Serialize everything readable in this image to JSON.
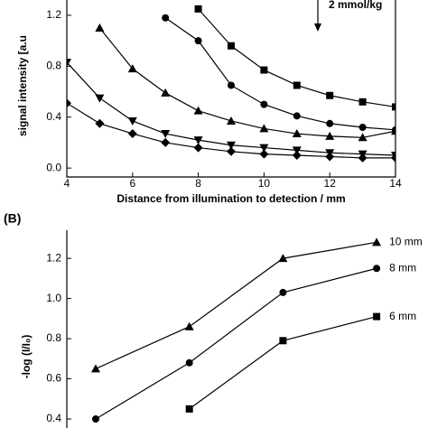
{
  "chart_data": [
    {
      "type": "line",
      "ylabel": "signal intensity [a.u",
      "xlabel": "Distance from illumination to detection / mm",
      "annotation": "2 mmol/kg",
      "x": [
        4,
        5,
        6,
        7,
        8,
        9,
        10,
        11,
        12,
        13,
        14
      ],
      "xlim": [
        4,
        14
      ],
      "xticks": [
        4,
        6,
        8,
        10,
        12,
        14
      ],
      "ylim": [
        -0.07,
        1.32
      ],
      "yticks": [
        {
          "value": 0,
          "label": "0.0"
        },
        {
          "value": 0.4,
          "label": "0.4"
        },
        {
          "value": 0.8,
          "label": "0.8"
        },
        {
          "value": 1.2,
          "label": "1.2"
        }
      ],
      "series": [
        {
          "marker": "square",
          "color": "#000000",
          "values": [
            null,
            null,
            null,
            null,
            1.25,
            0.96,
            0.77,
            0.65,
            0.57,
            0.52,
            0.48
          ]
        },
        {
          "marker": "circle",
          "color": "#000000",
          "values": [
            null,
            null,
            null,
            1.18,
            1.0,
            0.65,
            0.5,
            0.41,
            0.35,
            0.32,
            0.3
          ]
        },
        {
          "marker": "triangle-up",
          "color": "#000000",
          "values": [
            null,
            1.1,
            0.78,
            0.59,
            0.45,
            0.37,
            0.31,
            0.27,
            0.25,
            0.24,
            0.29
          ]
        },
        {
          "marker": "triangle-down",
          "color": "#000000",
          "values": [
            0.83,
            0.55,
            0.37,
            0.27,
            0.22,
            0.18,
            0.16,
            0.14,
            0.12,
            0.11,
            0.1
          ]
        },
        {
          "marker": "diamond",
          "color": "#000000",
          "values": [
            0.51,
            0.35,
            0.27,
            0.2,
            0.16,
            0.13,
            0.11,
            0.1,
            0.09,
            0.08,
            0.08
          ]
        }
      ]
    },
    {
      "type": "line",
      "panel": "(B)",
      "ylabel": "-log (I/I₀)",
      "categories": [
        null,
        null,
        null,
        null
      ],
      "ylim": [
        0.355,
        1.34
      ],
      "yticks": [
        0.4,
        0.6,
        0.8,
        {
          "value": 1.0,
          "label": "1.0"
        },
        1.2
      ],
      "series": [
        {
          "name": "10 mm",
          "marker": "triangle-up",
          "color": "#000000",
          "values": [
            0.65,
            0.86,
            1.2,
            1.28
          ]
        },
        {
          "name": "8 mm",
          "marker": "circle",
          "color": "#000000",
          "values": [
            0.4,
            0.68,
            1.03,
            1.15
          ]
        },
        {
          "name": "6 mm",
          "marker": "square",
          "color": "#000000",
          "values": [
            null,
            0.45,
            0.79,
            0.91
          ]
        }
      ]
    }
  ]
}
